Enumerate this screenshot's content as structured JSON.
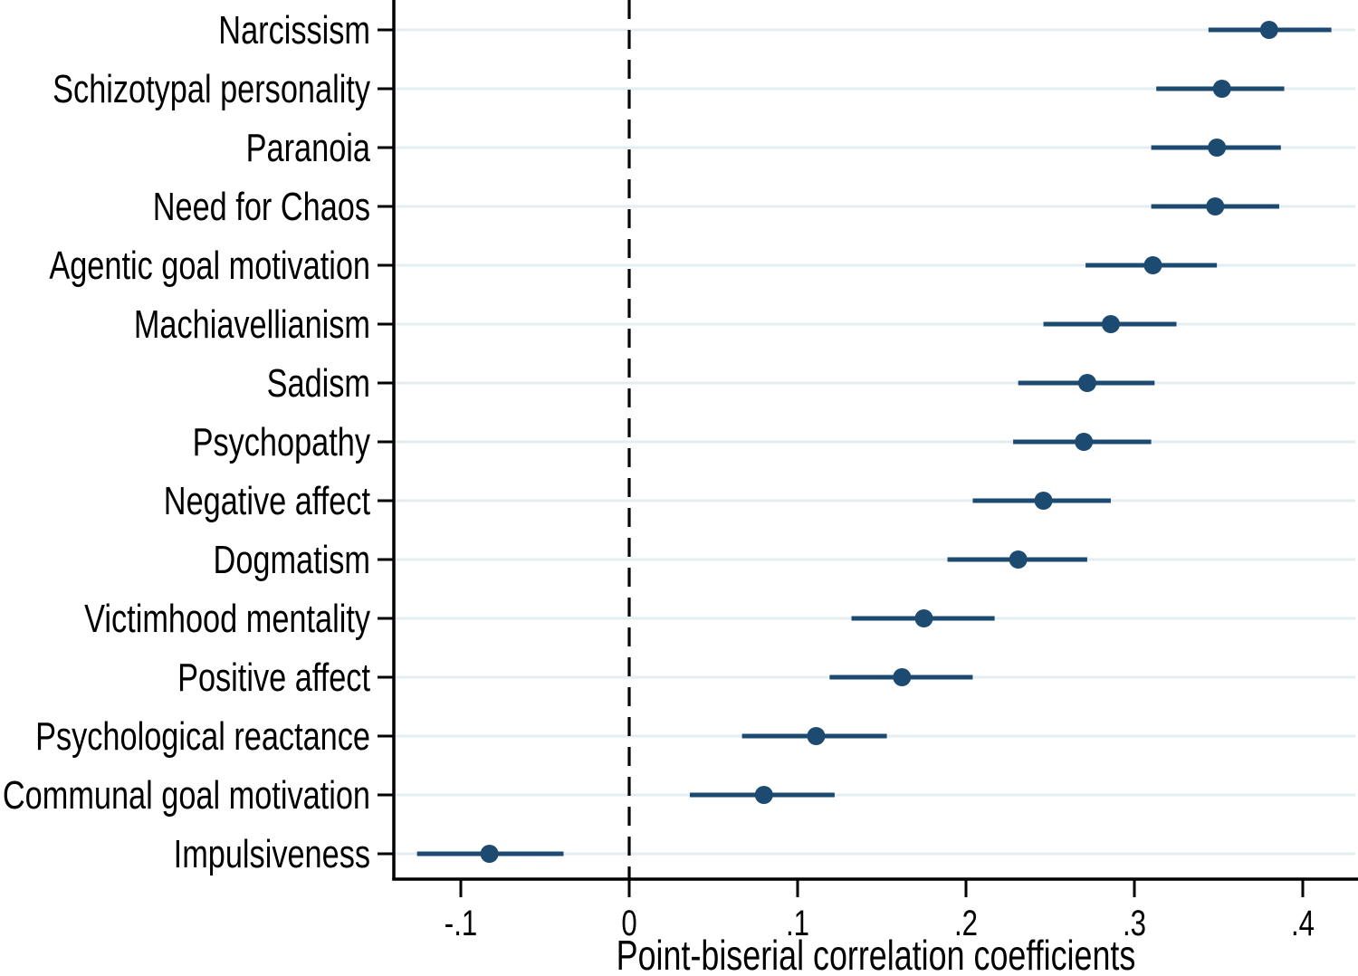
{
  "figure": {
    "background_color": "#ffffff",
    "text_color": "#000000"
  },
  "colors": {
    "marker": "#1d4a70",
    "ci_line": "#1d4a70",
    "gridline": "#e4edf0",
    "axis": "#000000",
    "zero_line": "#000000"
  },
  "chart_data": {
    "type": "scatter",
    "subtype": "coefficient_dot_whisker",
    "orientation": "horizontal",
    "title": "",
    "xlabel": "Point-biserial correlation coefficients",
    "ylabel": "",
    "xlim": [
      -0.139,
      0.43
    ],
    "grid": "horizontal",
    "legend": "none",
    "zero_reference_line": true,
    "x_ticks": [
      {
        "value": -0.1,
        "label": "-.1"
      },
      {
        "value": 0,
        "label": "0"
      },
      {
        "value": 0.1,
        "label": ".1"
      },
      {
        "value": 0.2,
        "label": ".2"
      },
      {
        "value": 0.3,
        "label": ".3"
      },
      {
        "value": 0.4,
        "label": ".4"
      }
    ],
    "points": [
      {
        "label": "Narcissism",
        "estimate": 0.38,
        "ci_low": 0.344,
        "ci_high": 0.417
      },
      {
        "label": "Schizotypal personality",
        "estimate": 0.352,
        "ci_low": 0.313,
        "ci_high": 0.389
      },
      {
        "label": "Paranoia",
        "estimate": 0.349,
        "ci_low": 0.31,
        "ci_high": 0.387
      },
      {
        "label": "Need for Chaos",
        "estimate": 0.348,
        "ci_low": 0.31,
        "ci_high": 0.386
      },
      {
        "label": "Agentic goal motivation",
        "estimate": 0.311,
        "ci_low": 0.271,
        "ci_high": 0.349
      },
      {
        "label": "Machiavellianism",
        "estimate": 0.286,
        "ci_low": 0.246,
        "ci_high": 0.325
      },
      {
        "label": "Sadism",
        "estimate": 0.272,
        "ci_low": 0.231,
        "ci_high": 0.312
      },
      {
        "label": "Psychopathy",
        "estimate": 0.27,
        "ci_low": 0.228,
        "ci_high": 0.31
      },
      {
        "label": "Negative affect",
        "estimate": 0.246,
        "ci_low": 0.204,
        "ci_high": 0.286
      },
      {
        "label": "Dogmatism",
        "estimate": 0.231,
        "ci_low": 0.189,
        "ci_high": 0.272
      },
      {
        "label": "Victimhood mentality",
        "estimate": 0.175,
        "ci_low": 0.132,
        "ci_high": 0.217
      },
      {
        "label": "Positive affect",
        "estimate": 0.162,
        "ci_low": 0.119,
        "ci_high": 0.204
      },
      {
        "label": "Psychological reactance",
        "estimate": 0.111,
        "ci_low": 0.067,
        "ci_high": 0.153
      },
      {
        "label": "Communal goal motivation",
        "estimate": 0.08,
        "ci_low": 0.036,
        "ci_high": 0.122
      },
      {
        "label": "Impulsiveness",
        "estimate": -0.083,
        "ci_low": -0.126,
        "ci_high": -0.039
      }
    ]
  }
}
